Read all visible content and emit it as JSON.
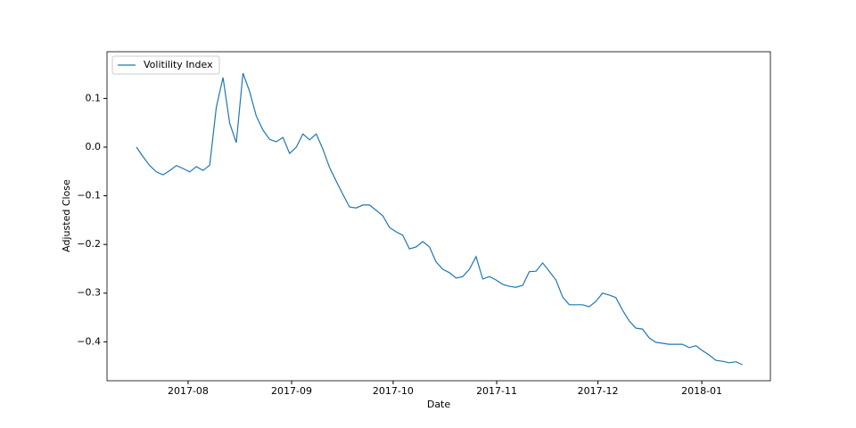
{
  "chart_data": {
    "type": "line",
    "xlabel": "Date",
    "ylabel": "Adjusted Close",
    "series": [
      {
        "name": "Volitility Index",
        "color": "#1f77b4",
        "values": [
          0.0,
          -0.02,
          -0.038,
          -0.051,
          -0.057,
          -0.048,
          -0.038,
          -0.044,
          -0.051,
          -0.04,
          -0.048,
          -0.037,
          0.082,
          0.143,
          0.049,
          0.009,
          0.152,
          0.114,
          0.064,
          0.035,
          0.016,
          0.011,
          0.02,
          -0.013,
          0.0,
          0.027,
          0.015,
          0.027,
          -0.004,
          -0.042,
          -0.07,
          -0.097,
          -0.123,
          -0.125,
          -0.119,
          -0.119,
          -0.13,
          -0.141,
          -0.165,
          -0.174,
          -0.181,
          -0.209,
          -0.205,
          -0.194,
          -0.205,
          -0.236,
          -0.251,
          -0.258,
          -0.269,
          -0.266,
          -0.251,
          -0.225,
          -0.271,
          -0.266,
          -0.273,
          -0.282,
          -0.286,
          -0.288,
          -0.284,
          -0.256,
          -0.255,
          -0.238,
          -0.255,
          -0.273,
          -0.308,
          -0.324,
          -0.324,
          -0.324,
          -0.328,
          -0.317,
          -0.3,
          -0.304,
          -0.309,
          -0.335,
          -0.357,
          -0.372,
          -0.374,
          -0.392,
          -0.401,
          -0.403,
          -0.405,
          -0.405,
          -0.405,
          -0.412,
          -0.408,
          -0.418,
          -0.427,
          -0.438,
          -0.44,
          -0.443,
          -0.441,
          -0.447
        ]
      }
    ],
    "xlim": [
      -4.42,
      95.2
    ],
    "xticks": [
      {
        "value": 7.76,
        "label": "2017-08"
      },
      {
        "value": 23.3,
        "label": "2017-09"
      },
      {
        "value": 38.55,
        "label": "2017-10"
      },
      {
        "value": 54.1,
        "label": "2017-11"
      },
      {
        "value": 69.3,
        "label": "2017-12"
      },
      {
        "value": 84.9,
        "label": "2018-01"
      }
    ],
    "ylim": [
      -0.48,
      0.196
    ],
    "yticks": [
      {
        "value": 0.1,
        "label": "0.1"
      },
      {
        "value": 0.0,
        "label": "0.0"
      },
      {
        "value": -0.1,
        "label": "−0.1"
      },
      {
        "value": -0.2,
        "label": "−0.2"
      },
      {
        "value": -0.3,
        "label": "−0.3"
      },
      {
        "value": -0.4,
        "label": "−0.4"
      }
    ],
    "legend": "upper left",
    "grid": false
  }
}
